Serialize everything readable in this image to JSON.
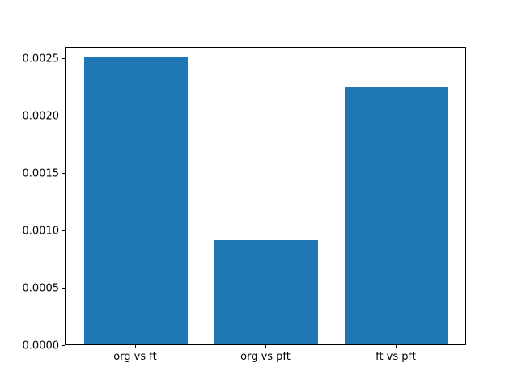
{
  "chart_data": {
    "type": "bar",
    "title": "",
    "xlabel": "",
    "ylabel": "",
    "categories": [
      "org vs ft",
      "org vs pft",
      "ft vs pft"
    ],
    "values": [
      0.0025,
      0.00091,
      0.00224
    ],
    "bar_color": "#1f77b4",
    "ylim": [
      0,
      0.0026
    ],
    "xlim": [
      -0.54,
      2.54
    ],
    "bar_width_data_units": 0.8,
    "yticks": [
      0.0,
      0.0005,
      0.001,
      0.0015,
      0.002,
      0.0025
    ],
    "ytick_labels": [
      "0.0000",
      "0.0005",
      "0.0010",
      "0.0015",
      "0.0020",
      "0.0025"
    ],
    "grid": false,
    "legend": null,
    "background_color": "#ffffff",
    "spine_color": "#000000"
  }
}
